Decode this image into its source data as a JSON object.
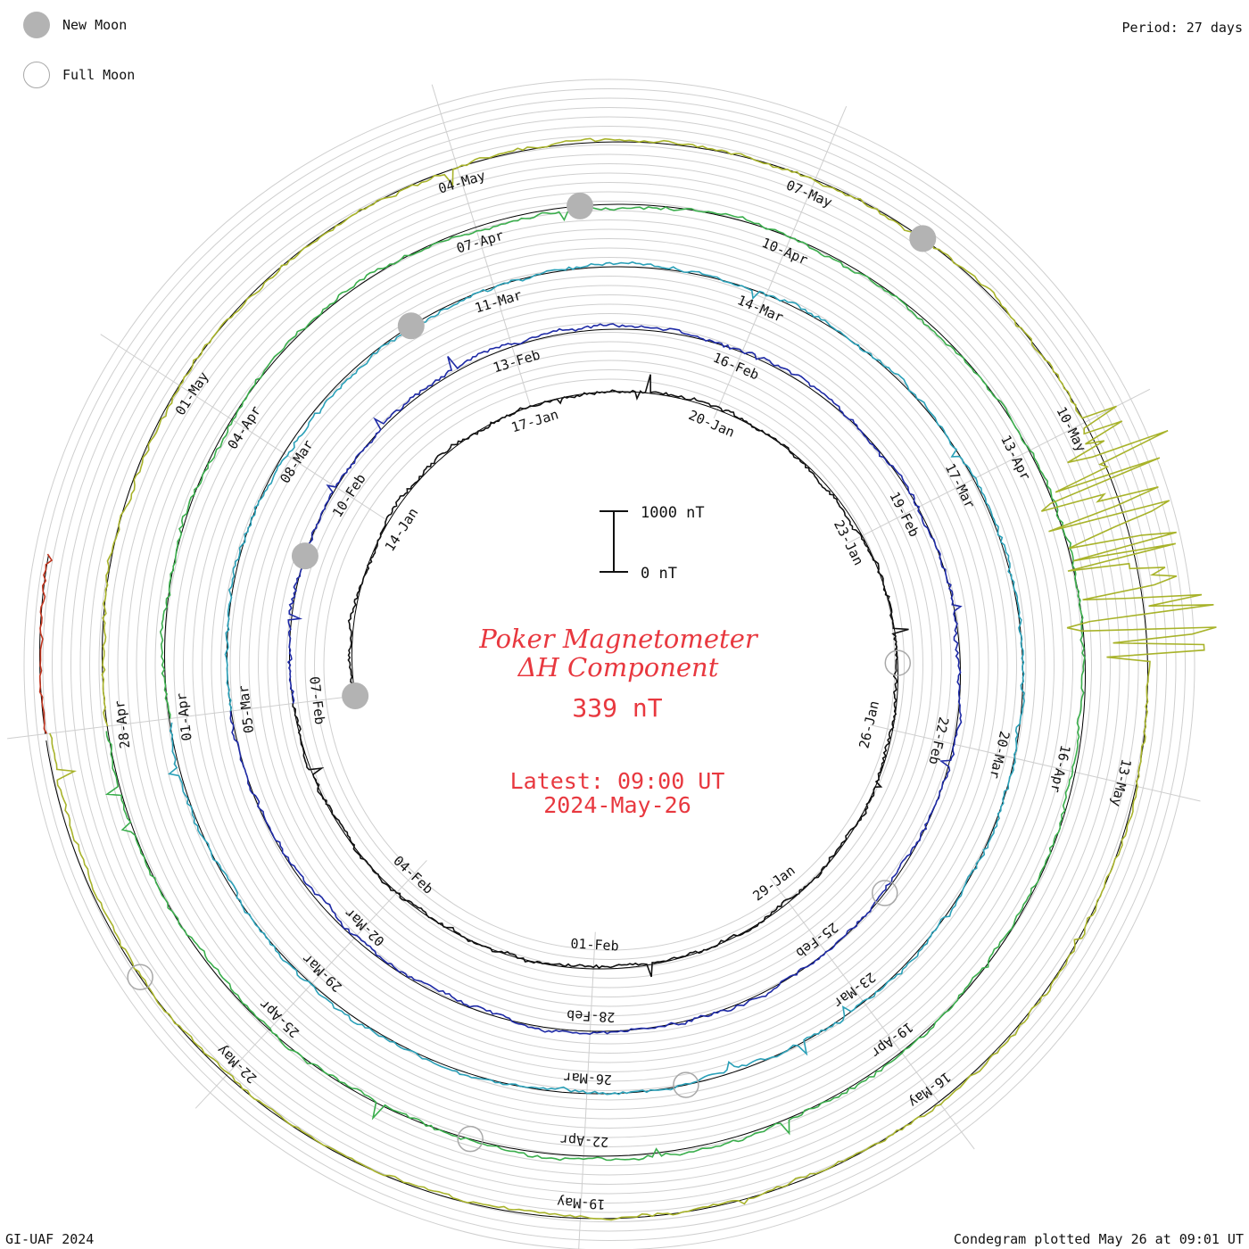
{
  "legend": {
    "new_moon_label": "New Moon",
    "full_moon_label": "Full Moon"
  },
  "period_text": "Period: 27 days",
  "footer_left": "GI-UAF 2024",
  "footer_right": "Condegram plotted May 26 at 09:01 UT",
  "colors": {
    "title": "#e8383f",
    "grid": "#cfcfcf",
    "baseline": "#000000",
    "moon": "#b3b3b3"
  },
  "chart_data": {
    "type": "line",
    "title": "Poker Magnetometer",
    "subtitle": "ΔH Component",
    "current_value": "339 nT",
    "latest_time": "Latest: 09:00 UT",
    "latest_date": "2024-May-26",
    "period_days": 27,
    "scale_bar": {
      "top_label": "1000 nT",
      "bottom_label": "0 nT"
    },
    "rotations": [
      {
        "name": "Jan",
        "color": "#111111",
        "start": "2024-01-11",
        "labels": [
          "14-Jan",
          "17-Jan",
          "20-Jan",
          "23-Jan",
          "26-Jan",
          "29-Jan",
          "01-Feb",
          "04-Feb",
          "07-Feb"
        ]
      },
      {
        "name": "Feb",
        "color": "#1e2aa6",
        "start": "2024-02-07",
        "labels": [
          "10-Feb",
          "13-Feb",
          "16-Feb",
          "19-Feb",
          "22-Feb",
          "25-Feb",
          "28-Feb",
          "02-Mar",
          "05-Mar"
        ]
      },
      {
        "name": "Mar",
        "color": "#2aa0b8",
        "start": "2024-03-05",
        "labels": [
          "08-Mar",
          "11-Mar",
          "14-Mar",
          "17-Mar",
          "20-Mar",
          "23-Mar",
          "26-Mar",
          "29-Mar",
          "01-Apr"
        ]
      },
      {
        "name": "Apr-a",
        "color": "#3aae4c",
        "start": "2024-04-01",
        "labels": [
          "04-Apr",
          "07-Apr",
          "10-Apr",
          "13-Apr",
          "16-Apr",
          "19-Apr",
          "22-Apr",
          "25-Apr",
          "28-Apr"
        ]
      },
      {
        "name": "Apr-b",
        "color": "#a8b32a",
        "start": "2024-04-28",
        "labels": [
          "01-May",
          "04-May",
          "07-May",
          "10-May",
          "13-May",
          "16-May",
          "19-May",
          "22-May"
        ]
      },
      {
        "name": "May",
        "color": "#c0341e",
        "start": "2024-05-25",
        "labels": []
      }
    ],
    "new_moons": [
      "2024-01-11",
      "2024-02-09",
      "2024-03-10",
      "2024-04-08",
      "2024-05-08"
    ],
    "full_moons": [
      "2024-01-25",
      "2024-02-24",
      "2024-03-25",
      "2024-04-23",
      "2024-05-23"
    ]
  }
}
